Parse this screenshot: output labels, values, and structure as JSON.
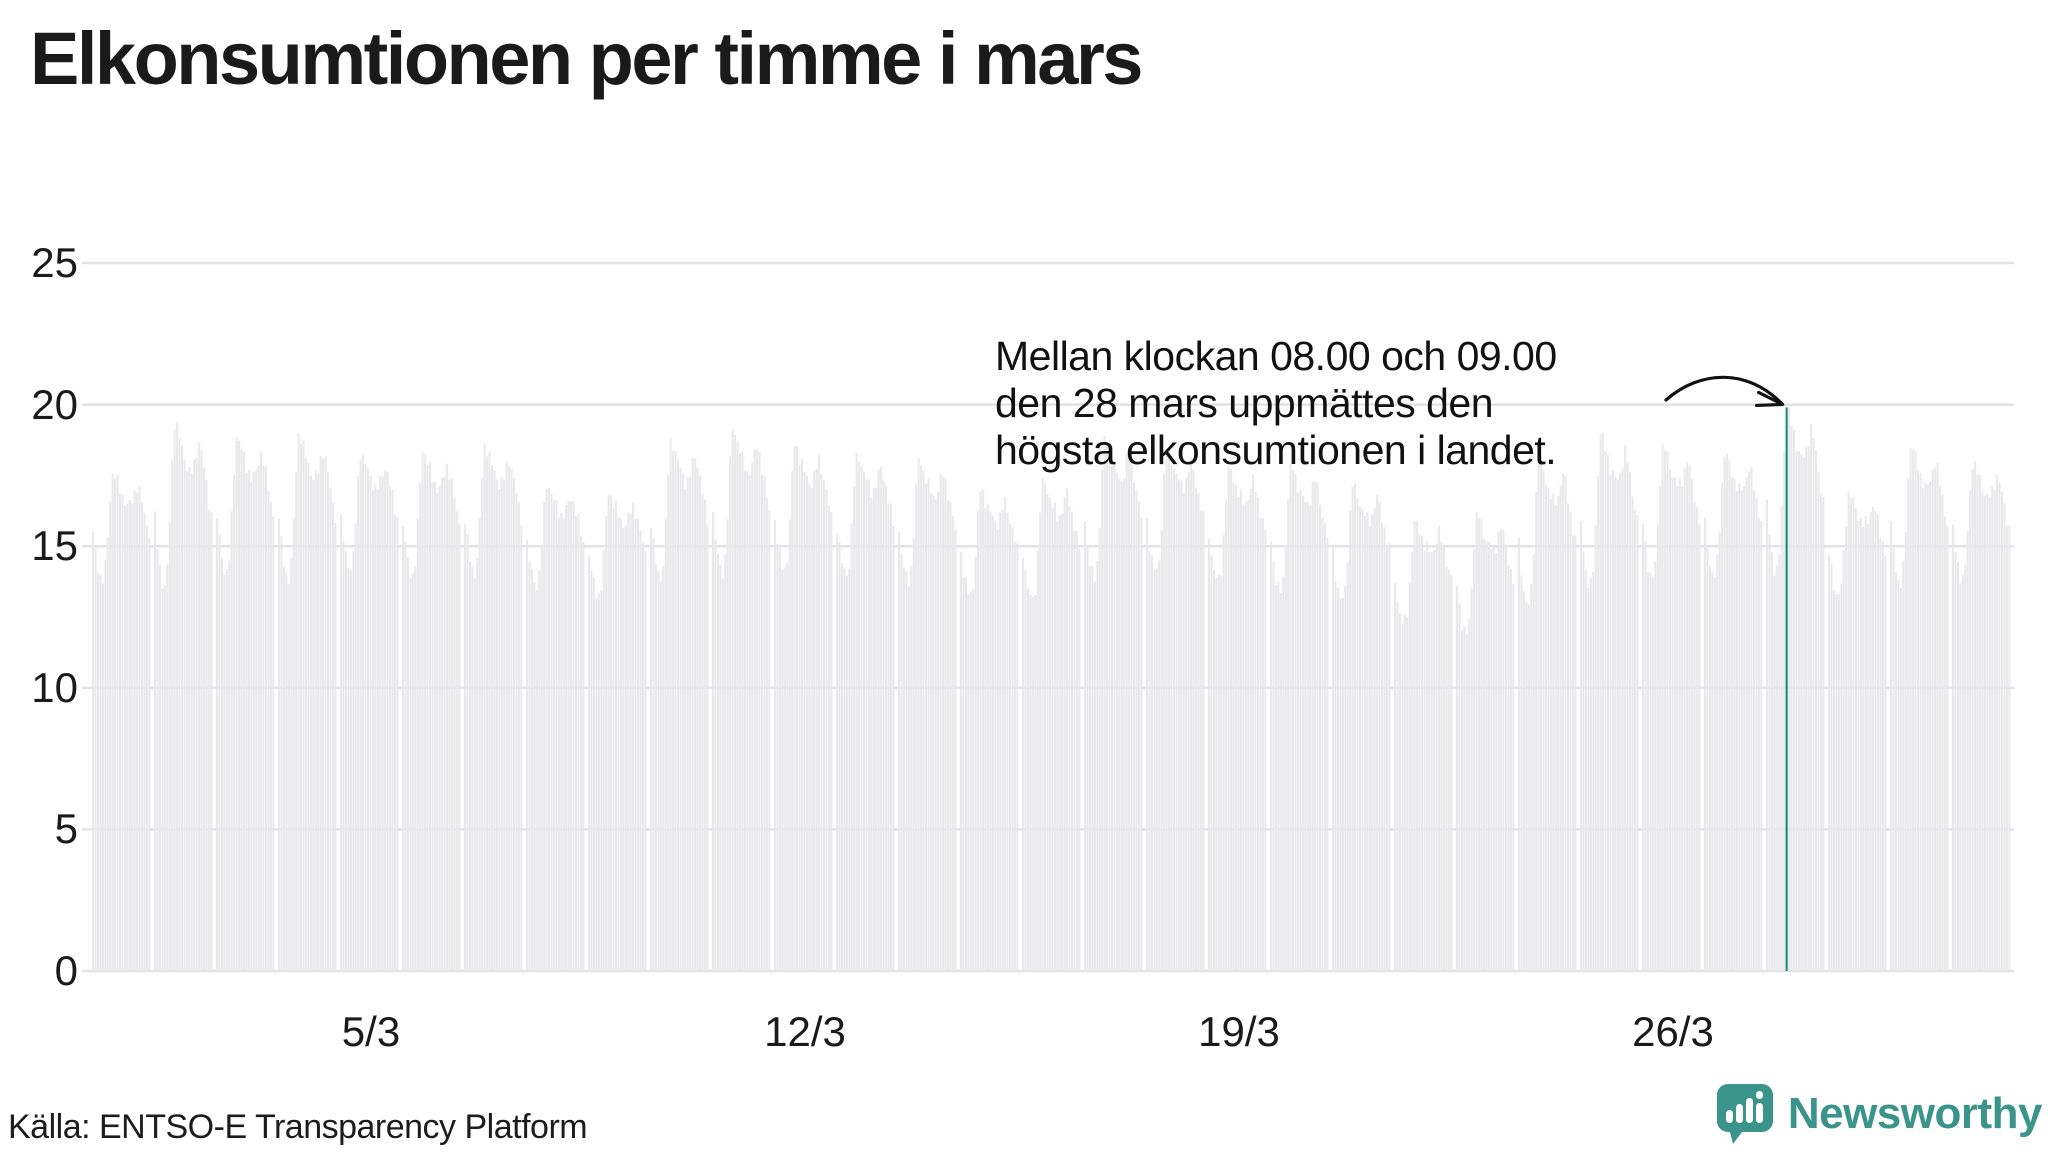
{
  "title": "Elkonsumtionen per timme i mars",
  "annotation": {
    "lines": [
      "Mellan klockan 08.00 och 09.00",
      "den 28 mars uppmättes den",
      "högsta elkonsumtionen i landet."
    ]
  },
  "source": "Källa: ENTSO-E Transparency Platform",
  "logo": {
    "text": "Newsworthy",
    "icon": "speech-bubble-bar-chart-icon",
    "color": "#3a948b"
  },
  "colors": {
    "bar": "#e9e8ea",
    "highlight": "#12877c",
    "gridline": "#e3e2e4",
    "baseline": "#e3e2e4",
    "arrow": "#111111",
    "text": "#1a1a1a"
  },
  "chart_data": {
    "type": "bar",
    "title": "Elkonsumtionen per timme i mars",
    "xlabel": "",
    "ylabel": "",
    "ylim": [
      0,
      25
    ],
    "yticks": [
      0,
      5,
      10,
      15,
      20,
      25
    ],
    "xticks": [
      {
        "label": "5/3",
        "day": 5
      },
      {
        "label": "12/3",
        "day": 12
      },
      {
        "label": "19/3",
        "day": 19
      },
      {
        "label": "26/3",
        "day": 26
      }
    ],
    "grid": "horizontal",
    "legend": "none",
    "days_in_month": 31,
    "hours_per_day": 24,
    "diurnal_profile": [
      0.42,
      0.25,
      0.12,
      0.04,
      0.02,
      0.12,
      0.4,
      0.75,
      1.0,
      0.97,
      0.9,
      0.84,
      0.78,
      0.74,
      0.7,
      0.7,
      0.74,
      0.82,
      0.88,
      0.82,
      0.72,
      0.62,
      0.52,
      0.44
    ],
    "days": {
      "night_min": [
        13.8,
        13.5,
        14.0,
        13.8,
        14.2,
        13.9,
        14.0,
        13.6,
        13.2,
        13.8,
        14.0,
        14.1,
        13.9,
        13.7,
        13.2,
        13.0,
        13.8,
        14.0,
        13.7,
        13.3,
        13.0,
        12.2,
        11.8,
        12.8,
        13.5,
        13.8,
        13.9,
        14.0,
        13.2,
        13.6,
        13.8
      ],
      "day_peak": [
        17.6,
        19.4,
        18.9,
        19.0,
        18.3,
        18.4,
        18.6,
        17.2,
        16.9,
        18.8,
        19.2,
        18.6,
        18.3,
        18.1,
        17.0,
        17.4,
        18.9,
        18.5,
        17.8,
        17.9,
        17.2,
        15.9,
        16.2,
        18.2,
        19.0,
        18.6,
        18.3,
        19.9,
        16.9,
        18.6,
        18.0
      ]
    },
    "highlight": {
      "day": 28,
      "hour_index": 8,
      "hour_start": "08.00",
      "hour_end": "09.00",
      "value": 19.9,
      "note": "högsta elkonsumtionen i landet"
    }
  }
}
